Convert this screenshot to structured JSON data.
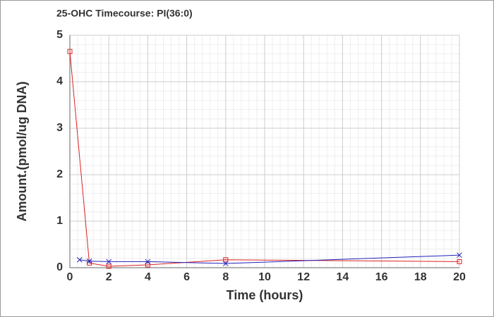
{
  "chart_data": {
    "type": "line",
    "title": "25-OHC Timecourse: PI(36:0)",
    "xlabel": "Time (hours)",
    "ylabel": "Amount.(pmol/ug DNA)",
    "series": [
      {
        "color": "#dd2222",
        "marker": "square",
        "x": [
          0,
          1,
          2,
          4,
          8,
          20
        ],
        "values": [
          4.65,
          0.1,
          0.03,
          0.06,
          0.17,
          0.13
        ]
      },
      {
        "color": "#2222bb",
        "marker": "x",
        "x": [
          0.5,
          1,
          2,
          4,
          8,
          20
        ],
        "values": [
          0.17,
          0.14,
          0.13,
          0.13,
          0.09,
          0.27
        ]
      }
    ],
    "xlim": [
      0,
      20
    ],
    "xticks": [
      0,
      2,
      4,
      6,
      8,
      10,
      12,
      14,
      16,
      18,
      20
    ],
    "ylim": [
      0,
      5
    ],
    "yticks": [
      0,
      1,
      2,
      3,
      4,
      5
    ],
    "grid": true
  }
}
